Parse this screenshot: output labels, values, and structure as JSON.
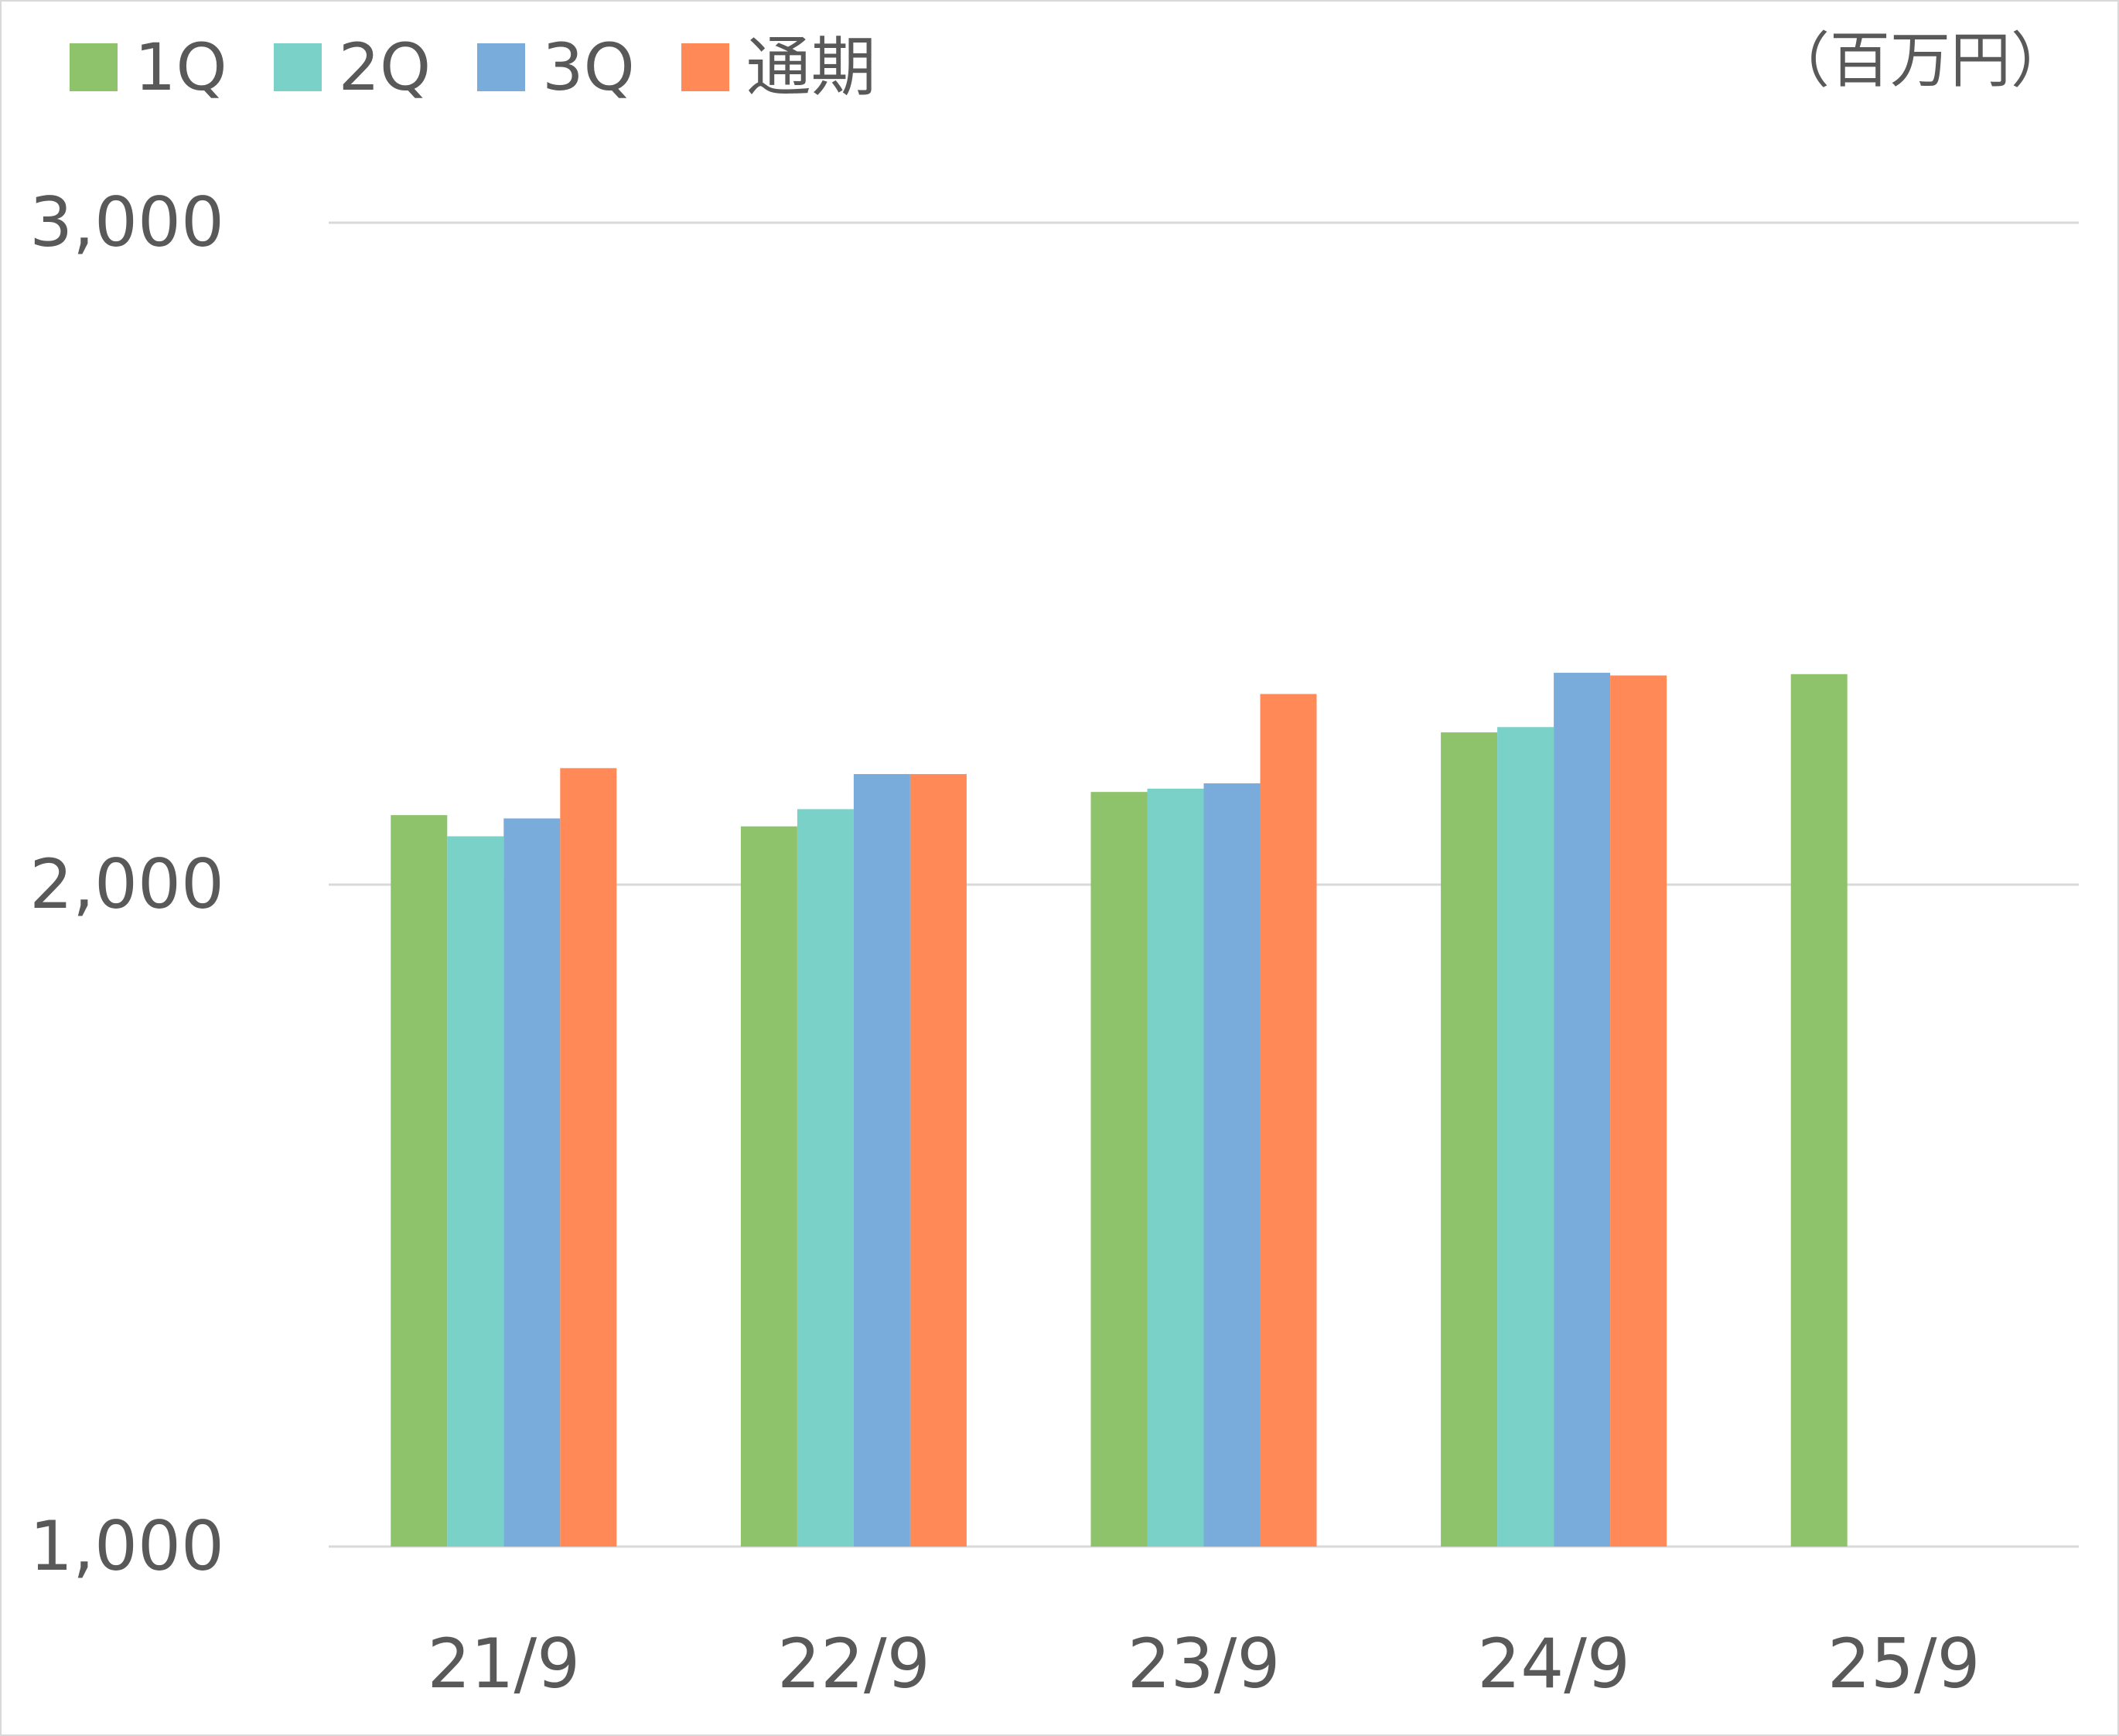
{
  "chart_data": {
    "type": "bar",
    "title": "",
    "unit_label": "（百万円）",
    "xlabel": "",
    "ylabel": "",
    "categories": [
      "21/9",
      "22/9",
      "23/9",
      "24/9",
      "25/9"
    ],
    "series": [
      {
        "name": "1Q",
        "color": "#8FC36B",
        "values": [
          2105,
          2088,
          2140,
          2230,
          2318
        ]
      },
      {
        "name": "2Q",
        "color": "#7AD1C7",
        "values": [
          2073,
          2114,
          2145,
          2238,
          null
        ]
      },
      {
        "name": "3Q",
        "color": "#7AACDB",
        "values": [
          2100,
          2167,
          2153,
          2320,
          null
        ]
      },
      {
        "name": "通期",
        "color": "#FF8A57",
        "values": [
          2176,
          2167,
          2288,
          2316,
          null
        ]
      }
    ],
    "ylim": [
      1000,
      3000
    ],
    "yticks": [
      "1,000",
      "2,000",
      "3,000"
    ],
    "ytick_values": [
      1000,
      2000,
      3000
    ],
    "grid": true,
    "legend_position": "top-left"
  }
}
